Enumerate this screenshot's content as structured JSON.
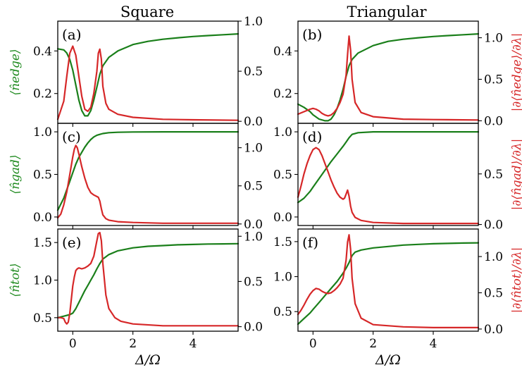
{
  "figure": {
    "column_titles": [
      "Square",
      "Triangular"
    ],
    "xlabel": "Δ/Ω",
    "x_ticks": [
      "0",
      "2",
      "4"
    ],
    "colors": {
      "left_series": "#1a7f1a",
      "right_series": "#d62728"
    }
  },
  "chart_data": [
    {
      "type": "line",
      "panel_label": "(a)",
      "column": "Square",
      "row": 0,
      "ylabel_left": "⟨n̂edge⟩",
      "ylabel_right": "",
      "xlim": [
        -0.5,
        5.5
      ],
      "ylim_left": [
        0.06,
        0.54
      ],
      "ylim_right": [
        -0.02,
        1.0
      ],
      "yticks_left": [
        "0.2",
        "0.4"
      ],
      "yticks_right": [
        "0.0",
        "0.5",
        "1.0"
      ],
      "series": [
        {
          "axis": "left",
          "x": [
            -0.5,
            -0.3,
            -0.2,
            -0.1,
            0,
            0.1,
            0.2,
            0.3,
            0.4,
            0.5,
            0.6,
            0.7,
            0.8,
            0.9,
            1.0,
            1.2,
            1.5,
            2,
            2.5,
            3,
            3.5,
            4,
            4.5,
            5,
            5.5
          ],
          "y": [
            0.41,
            0.405,
            0.39,
            0.36,
            0.31,
            0.24,
            0.17,
            0.12,
            0.095,
            0.095,
            0.12,
            0.17,
            0.23,
            0.29,
            0.33,
            0.37,
            0.4,
            0.43,
            0.445,
            0.455,
            0.462,
            0.468,
            0.472,
            0.476,
            0.48
          ]
        },
        {
          "axis": "right",
          "x": [
            -0.5,
            -0.3,
            -0.2,
            -0.1,
            0,
            0.1,
            0.2,
            0.3,
            0.4,
            0.5,
            0.6,
            0.7,
            0.8,
            0.85,
            0.9,
            0.95,
            1.0,
            1.1,
            1.2,
            1.5,
            2,
            3,
            4,
            5.5
          ],
          "y": [
            0.02,
            0.2,
            0.45,
            0.68,
            0.75,
            0.66,
            0.45,
            0.25,
            0.12,
            0.1,
            0.14,
            0.28,
            0.5,
            0.68,
            0.72,
            0.62,
            0.35,
            0.18,
            0.12,
            0.07,
            0.04,
            0.02,
            0.015,
            0.01
          ]
        }
      ]
    },
    {
      "type": "line",
      "panel_label": "(b)",
      "column": "Triangular",
      "row": 0,
      "ylabel_left": "",
      "ylabel_right": "|∂⟨n̂edge⟩/∂λ|",
      "xlim": [
        -0.5,
        5.5
      ],
      "ylim_left": [
        0.06,
        0.54
      ],
      "ylim_right": [
        -0.03,
        1.2
      ],
      "yticks_left": [
        "0.2",
        "0.4"
      ],
      "yticks_right": [
        "0.0",
        "0.5",
        "1.0"
      ],
      "series": [
        {
          "axis": "left",
          "x": [
            -0.5,
            -0.3,
            -0.1,
            0,
            0.2,
            0.4,
            0.5,
            0.6,
            0.7,
            0.8,
            0.9,
            1.0,
            1.1,
            1.2,
            1.3,
            1.5,
            2,
            2.5,
            3,
            3.5,
            4,
            4.5,
            5,
            5.5
          ],
          "y": [
            0.15,
            0.135,
            0.115,
            0.1,
            0.08,
            0.072,
            0.072,
            0.08,
            0.1,
            0.13,
            0.17,
            0.22,
            0.28,
            0.33,
            0.36,
            0.39,
            0.425,
            0.445,
            0.455,
            0.462,
            0.468,
            0.472,
            0.476,
            0.48
          ]
        },
        {
          "axis": "right",
          "x": [
            -0.5,
            -0.3,
            -0.1,
            0,
            0.1,
            0.2,
            0.3,
            0.4,
            0.5,
            0.6,
            0.7,
            0.8,
            0.9,
            1.0,
            1.1,
            1.15,
            1.2,
            1.25,
            1.3,
            1.4,
            1.6,
            2,
            3,
            4,
            5.5
          ],
          "y": [
            0.08,
            0.11,
            0.14,
            0.15,
            0.14,
            0.12,
            0.09,
            0.07,
            0.06,
            0.07,
            0.1,
            0.15,
            0.22,
            0.32,
            0.55,
            0.8,
            1.02,
            0.85,
            0.5,
            0.22,
            0.1,
            0.05,
            0.02,
            0.015,
            0.01
          ]
        }
      ]
    },
    {
      "type": "line",
      "panel_label": "(c)",
      "column": "Square",
      "row": 1,
      "ylabel_left": "⟨n̂gad⟩",
      "ylabel_right": "",
      "xlim": [
        -0.5,
        5.5
      ],
      "ylim_left": [
        -0.1,
        1.1
      ],
      "ylim_right": [
        -0.02,
        1.32
      ],
      "yticks_left": [
        "0.0",
        "0.5",
        "1.0"
      ],
      "yticks_right": [
        "0.0",
        "0.5",
        "1.0"
      ],
      "series": [
        {
          "axis": "left",
          "x": [
            -0.5,
            -0.3,
            -0.1,
            0,
            0.1,
            0.2,
            0.3,
            0.4,
            0.5,
            0.6,
            0.7,
            0.8,
            0.9,
            1.0,
            1.2,
            1.5,
            2,
            3,
            4,
            5.5
          ],
          "y": [
            0.08,
            0.22,
            0.42,
            0.52,
            0.62,
            0.7,
            0.76,
            0.82,
            0.87,
            0.91,
            0.94,
            0.96,
            0.97,
            0.98,
            0.99,
            0.995,
            0.998,
            1.0,
            1.0,
            1.0
          ]
        },
        {
          "axis": "right",
          "x": [
            -0.5,
            -0.4,
            -0.3,
            -0.2,
            -0.1,
            0,
            0.05,
            0.1,
            0.15,
            0.2,
            0.3,
            0.4,
            0.5,
            0.6,
            0.7,
            0.8,
            0.85,
            0.9,
            0.95,
            1.0,
            1.1,
            1.2,
            1.5,
            2,
            3,
            4,
            5.5
          ],
          "y": [
            0.08,
            0.13,
            0.25,
            0.42,
            0.65,
            0.88,
            0.98,
            1.03,
            1.0,
            0.92,
            0.75,
            0.6,
            0.48,
            0.41,
            0.38,
            0.36,
            0.35,
            0.3,
            0.2,
            0.12,
            0.07,
            0.05,
            0.03,
            0.02,
            0.01,
            0.01,
            0.01
          ]
        }
      ]
    },
    {
      "type": "line",
      "panel_label": "(d)",
      "column": "Triangular",
      "row": 1,
      "ylabel_left": "",
      "ylabel_right": "|∂⟨n̂gad⟩/∂λ|",
      "xlim": [
        -0.5,
        5.5
      ],
      "ylim_left": [
        -0.1,
        1.1
      ],
      "ylim_right": [
        -0.01,
        1.0
      ],
      "yticks_left": [
        "0.0",
        "0.5",
        "1.0"
      ],
      "yticks_right": [
        "0.0",
        "0.5"
      ],
      "series": [
        {
          "axis": "left",
          "x": [
            -0.5,
            -0.3,
            -0.1,
            0,
            0.2,
            0.4,
            0.6,
            0.8,
            1.0,
            1.1,
            1.2,
            1.3,
            1.5,
            2,
            3,
            4,
            5.5
          ],
          "y": [
            0.17,
            0.22,
            0.3,
            0.35,
            0.45,
            0.55,
            0.65,
            0.74,
            0.83,
            0.88,
            0.93,
            0.97,
            0.99,
            1.0,
            1.0,
            1.0,
            1.0
          ]
        },
        {
          "axis": "right",
          "x": [
            -0.5,
            -0.4,
            -0.3,
            -0.2,
            -0.1,
            0,
            0.1,
            0.2,
            0.3,
            0.4,
            0.5,
            0.6,
            0.7,
            0.8,
            0.9,
            1.0,
            1.05,
            1.1,
            1.15,
            1.2,
            1.25,
            1.3,
            1.4,
            1.6,
            2,
            3,
            4,
            5.5
          ],
          "y": [
            0.27,
            0.38,
            0.5,
            0.6,
            0.68,
            0.74,
            0.76,
            0.74,
            0.68,
            0.6,
            0.52,
            0.44,
            0.37,
            0.31,
            0.27,
            0.25,
            0.26,
            0.3,
            0.34,
            0.28,
            0.18,
            0.12,
            0.07,
            0.04,
            0.02,
            0.01,
            0.01,
            0.01
          ]
        }
      ]
    },
    {
      "type": "line",
      "panel_label": "(e)",
      "column": "Square",
      "row": 2,
      "ylabel_left": "⟨n̂tot⟩",
      "ylabel_right": "",
      "xlim": [
        -0.5,
        5.5
      ],
      "ylim_left": [
        0.32,
        1.68
      ],
      "ylim_right": [
        -0.05,
        1.08
      ],
      "yticks_left": [
        "0.5",
        "1.0",
        "1.5"
      ],
      "yticks_right": [
        "0.0",
        "0.5",
        "1.0"
      ],
      "series": [
        {
          "axis": "left",
          "x": [
            -0.5,
            -0.3,
            -0.1,
            0,
            0.1,
            0.2,
            0.3,
            0.4,
            0.5,
            0.6,
            0.7,
            0.8,
            0.9,
            1.0,
            1.2,
            1.5,
            2,
            2.5,
            3,
            3.5,
            4,
            4.5,
            5,
            5.5
          ],
          "y": [
            0.5,
            0.52,
            0.54,
            0.56,
            0.62,
            0.7,
            0.78,
            0.86,
            0.93,
            1.0,
            1.07,
            1.15,
            1.22,
            1.28,
            1.34,
            1.39,
            1.43,
            1.45,
            1.46,
            1.47,
            1.475,
            1.48,
            1.482,
            1.485
          ]
        },
        {
          "axis": "right",
          "x": [
            -0.5,
            -0.4,
            -0.3,
            -0.25,
            -0.2,
            -0.15,
            -0.1,
            -0.05,
            0,
            0.05,
            0.1,
            0.15,
            0.2,
            0.3,
            0.4,
            0.5,
            0.6,
            0.7,
            0.8,
            0.85,
            0.9,
            0.95,
            1.0,
            1.1,
            1.2,
            1.4,
            1.6,
            2,
            3,
            4,
            5.5
          ],
          "y": [
            0.1,
            0.1,
            0.09,
            0.05,
            0.03,
            0.05,
            0.15,
            0.3,
            0.45,
            0.55,
            0.62,
            0.64,
            0.65,
            0.64,
            0.65,
            0.67,
            0.7,
            0.78,
            0.95,
            1.03,
            1.04,
            0.95,
            0.7,
            0.35,
            0.2,
            0.1,
            0.06,
            0.03,
            0.01,
            0.01,
            0.01
          ]
        }
      ]
    },
    {
      "type": "line",
      "panel_label": "(f)",
      "column": "Triangular",
      "row": 2,
      "ylabel_left": "",
      "ylabel_right": "|∂⟨n̂tot⟩/∂λ|",
      "xlim": [
        -0.5,
        5.5
      ],
      "ylim_left": [
        0.22,
        1.68
      ],
      "ylim_right": [
        -0.03,
        1.38
      ],
      "yticks_left": [
        "0.5",
        "1.0",
        "1.5"
      ],
      "yticks_right": [
        "0.0",
        "0.5",
        "1.0"
      ],
      "series": [
        {
          "axis": "left",
          "x": [
            -0.5,
            -0.3,
            -0.1,
            0,
            0.2,
            0.4,
            0.6,
            0.8,
            1.0,
            1.1,
            1.2,
            1.3,
            1.4,
            1.6,
            2,
            2.5,
            3,
            3.5,
            4,
            4.5,
            5,
            5.5
          ],
          "y": [
            0.32,
            0.4,
            0.48,
            0.53,
            0.63,
            0.73,
            0.83,
            0.93,
            1.05,
            1.12,
            1.2,
            1.3,
            1.35,
            1.38,
            1.41,
            1.43,
            1.45,
            1.46,
            1.47,
            1.475,
            1.48,
            1.483
          ]
        },
        {
          "axis": "right",
          "x": [
            -0.5,
            -0.4,
            -0.3,
            -0.2,
            -0.1,
            0,
            0.1,
            0.2,
            0.3,
            0.4,
            0.5,
            0.6,
            0.7,
            0.8,
            0.9,
            1.0,
            1.1,
            1.15,
            1.2,
            1.25,
            1.3,
            1.4,
            1.6,
            2,
            3,
            4,
            5.5
          ],
          "y": [
            0.2,
            0.26,
            0.33,
            0.41,
            0.48,
            0.53,
            0.56,
            0.55,
            0.52,
            0.5,
            0.49,
            0.5,
            0.53,
            0.57,
            0.62,
            0.7,
            0.95,
            1.2,
            1.3,
            1.1,
            0.7,
            0.35,
            0.15,
            0.06,
            0.03,
            0.02,
            0.02
          ]
        }
      ]
    }
  ]
}
